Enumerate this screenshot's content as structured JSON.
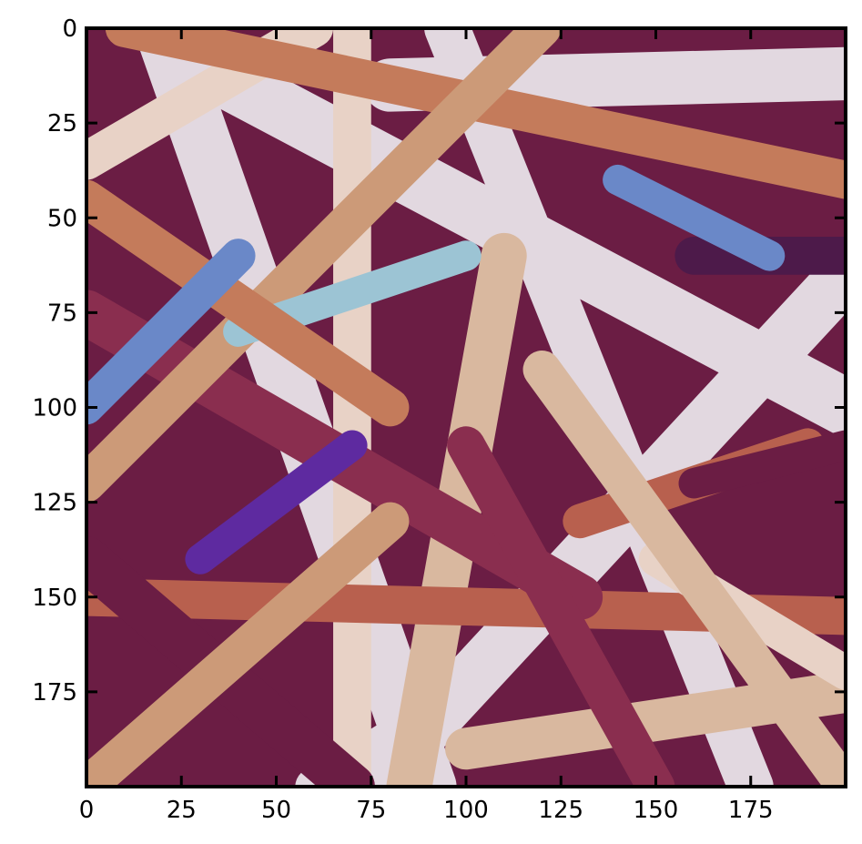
{
  "chart_data": {
    "type": "heatmap",
    "title": "",
    "xlabel": "",
    "ylabel": "",
    "xlim": [
      0,
      200
    ],
    "ylim": [
      200,
      0
    ],
    "x_ticks": [
      0,
      25,
      50,
      75,
      100,
      125,
      150,
      175
    ],
    "y_ticks": [
      0,
      25,
      50,
      75,
      100,
      125,
      150,
      175
    ],
    "x_tick_labels": [
      "0",
      "25",
      "50",
      "75",
      "100",
      "125",
      "150",
      "175"
    ],
    "y_tick_labels": [
      "0",
      "25",
      "50",
      "75",
      "100",
      "125",
      "150",
      "175"
    ],
    "grid": false,
    "colormap": "twilight-like",
    "colors": {
      "lightest": "#e2d8e0",
      "pale": "#e8d2c6",
      "beige": "#d9b89f",
      "tan": "#cc9a78",
      "orange": "#c47b5b",
      "rust": "#b8604e",
      "wine": "#8a2e4f",
      "maroon": "#6b1d44",
      "plum": "#4d1a4a",
      "purple": "#5e2aa0",
      "periwinkle": "#6a88c8",
      "sky": "#9cc4d4"
    },
    "fibers": [
      {
        "from": [
          80,
          15
        ],
        "to": [
          200,
          12
        ],
        "w": 14,
        "shade": "lightest"
      },
      {
        "from": [
          20,
          0
        ],
        "to": [
          90,
          200
        ],
        "w": 15,
        "shade": "lightest"
      },
      {
        "from": [
          30,
          10
        ],
        "to": [
          200,
          100
        ],
        "w": 15,
        "shade": "lightest"
      },
      {
        "from": [
          75,
          200
        ],
        "to": [
          200,
          65
        ],
        "w": 14,
        "shade": "lightest"
      },
      {
        "from": [
          95,
          0
        ],
        "to": [
          175,
          200
        ],
        "w": 12,
        "shade": "lightest"
      },
      {
        "from": [
          60,
          200
        ],
        "to": [
          100,
          175
        ],
        "w": 10,
        "shade": "lightest"
      },
      {
        "from": [
          0,
          35
        ],
        "to": [
          60,
          0
        ],
        "w": 10,
        "shade": "pale"
      },
      {
        "from": [
          110,
          60
        ],
        "to": [
          85,
          200
        ],
        "w": 12,
        "shade": "beige"
      },
      {
        "from": [
          70,
          0
        ],
        "to": [
          70,
          200
        ],
        "w": 10,
        "shade": "pale"
      },
      {
        "from": [
          0,
          150
        ],
        "to": [
          200,
          155
        ],
        "w": 10,
        "shade": "rust"
      },
      {
        "from": [
          0,
          75
        ],
        "to": [
          130,
          150
        ],
        "w": 12,
        "shade": "wine"
      },
      {
        "from": [
          0,
          140
        ],
        "to": [
          70,
          200
        ],
        "w": 12,
        "shade": "maroon"
      },
      {
        "from": [
          10,
          0
        ],
        "to": [
          200,
          40
        ],
        "w": 10,
        "shade": "orange"
      },
      {
        "from": [
          0,
          120
        ],
        "to": [
          120,
          0
        ],
        "w": 10,
        "shade": "tan"
      },
      {
        "from": [
          100,
          190
        ],
        "to": [
          200,
          175
        ],
        "w": 11,
        "shade": "beige"
      },
      {
        "from": [
          160,
          60
        ],
        "to": [
          200,
          60
        ],
        "w": 10,
        "shade": "plum"
      },
      {
        "from": [
          40,
          80
        ],
        "to": [
          100,
          60
        ],
        "w": 8,
        "shade": "sky"
      },
      {
        "from": [
          0,
          200
        ],
        "to": [
          80,
          130
        ],
        "w": 10,
        "shade": "tan"
      },
      {
        "from": [
          130,
          130
        ],
        "to": [
          190,
          110
        ],
        "w": 9,
        "shade": "rust"
      },
      {
        "from": [
          0,
          45
        ],
        "to": [
          80,
          100
        ],
        "w": 10,
        "shade": "orange"
      },
      {
        "from": [
          150,
          140
        ],
        "to": [
          200,
          170
        ],
        "w": 9,
        "shade": "pale"
      },
      {
        "from": [
          120,
          90
        ],
        "to": [
          200,
          200
        ],
        "w": 10,
        "shade": "beige"
      },
      {
        "from": [
          0,
          100
        ],
        "to": [
          40,
          60
        ],
        "w": 9,
        "shade": "periwinkle"
      },
      {
        "from": [
          140,
          40
        ],
        "to": [
          180,
          60
        ],
        "w": 8,
        "shade": "periwinkle"
      },
      {
        "from": [
          30,
          140
        ],
        "to": [
          70,
          110
        ],
        "w": 8,
        "shade": "purple"
      },
      {
        "from": [
          100,
          110
        ],
        "to": [
          150,
          200
        ],
        "w": 10,
        "shade": "wine"
      },
      {
        "from": [
          160,
          120
        ],
        "to": [
          200,
          110
        ],
        "w": 8,
        "shade": "maroon"
      }
    ]
  }
}
